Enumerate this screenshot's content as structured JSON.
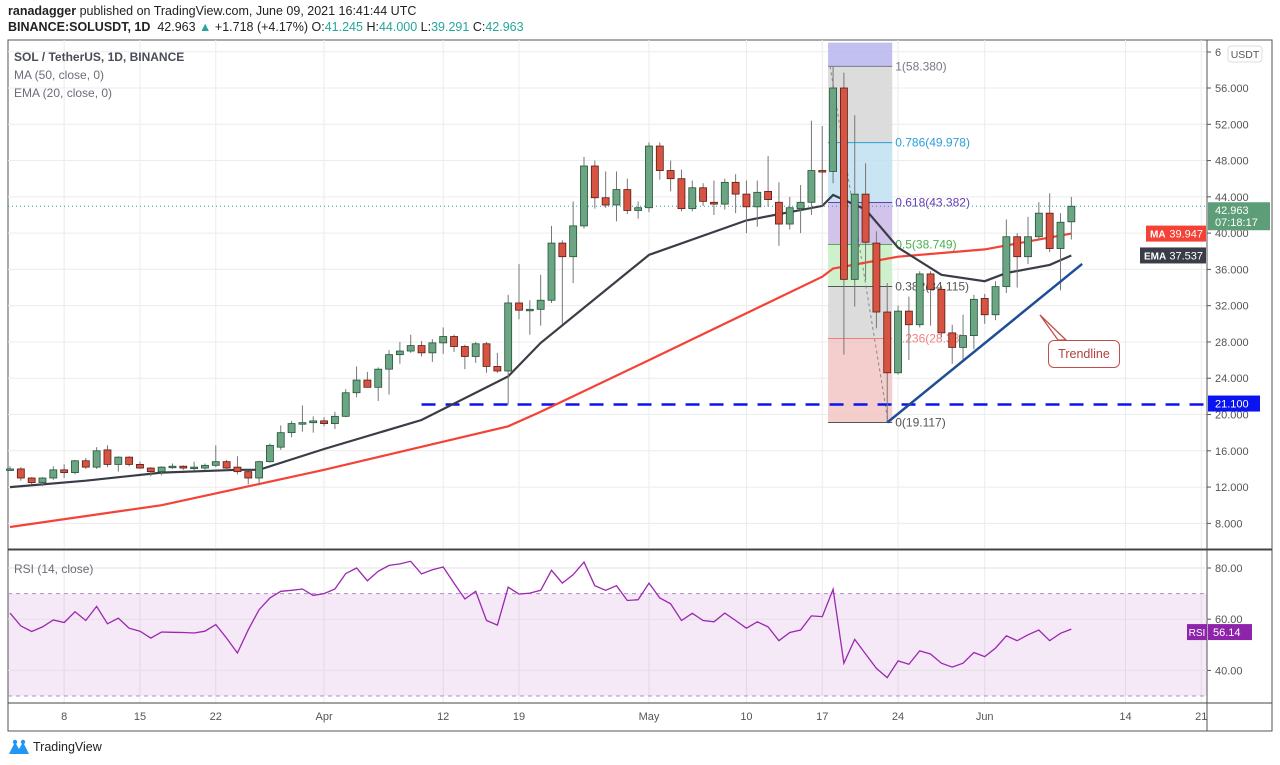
{
  "header": {
    "author": "ranadagger",
    "published_text": "published on TradingView.com, June 09, 2021 16:41:44 UTC",
    "symbol": "BINANCE:SOLUSDT, 1D",
    "last": "42.963",
    "change": "+1.718 (+4.17%)",
    "o_label": "O:",
    "o": "41.245",
    "h_label": "H:",
    "h": "44.000",
    "l_label": "L:",
    "l": "39.291",
    "c_label": "C:",
    "c": "42.963"
  },
  "legend": {
    "title": "SOL / TetherUS, 1D, BINANCE",
    "ma": "MA (50, close, 0)",
    "ema": "EMA (20, close, 0)",
    "rsi": "RSI (14, close)"
  },
  "footer": {
    "brand": "TradingView",
    "logo_icon": "tradingview-logo-icon"
  },
  "colors": {
    "up": "#6ba583",
    "up_border": "#225437",
    "down": "#d75442",
    "down_border": "#5b1a13",
    "ma": "#f44336",
    "ema": "#3a3d47",
    "rsi": "#9c27b0",
    "support": "#0a14f0",
    "trendline": "#1f4e99",
    "accent_teal": "#26a69a"
  },
  "chart_data": {
    "type": "candlestick",
    "year": 2021,
    "currency": "USDT",
    "price_ylim": [
      4,
      61
    ],
    "price_ticks": [
      "8.000",
      "12.000",
      "16.000",
      "20.000",
      "24.000",
      "28.000",
      "32.000",
      "36.000",
      "40.000",
      "44.000",
      "48.000",
      "52.000",
      "56.000",
      "6"
    ],
    "x_ticks": [
      {
        "label": "8",
        "date": "03-08"
      },
      {
        "label": "15",
        "date": "03-15"
      },
      {
        "label": "22",
        "date": "03-22"
      },
      {
        "label": "Apr",
        "date": "04-01"
      },
      {
        "label": "12",
        "date": "04-12"
      },
      {
        "label": "19",
        "date": "04-19"
      },
      {
        "label": "May",
        "date": "05-01"
      },
      {
        "label": "10",
        "date": "05-10"
      },
      {
        "label": "17",
        "date": "05-17"
      },
      {
        "label": "24",
        "date": "05-24"
      },
      {
        "label": "Jun",
        "date": "06-01"
      },
      {
        "label": "14",
        "date": "06-14"
      },
      {
        "label": "21",
        "date": "06-21"
      }
    ],
    "grid": true,
    "candles_fields": [
      "date",
      "open",
      "high",
      "low",
      "close"
    ],
    "candles": [
      [
        "03-03",
        14.0,
        14.3,
        13.8,
        14.0
      ],
      [
        "03-04",
        14.0,
        14.2,
        12.7,
        13.0
      ],
      [
        "03-05",
        13.0,
        13.1,
        12.3,
        12.5
      ],
      [
        "03-06",
        12.5,
        13.1,
        12.1,
        13.0
      ],
      [
        "03-07",
        13.0,
        14.3,
        12.8,
        13.9
      ],
      [
        "03-08",
        13.9,
        14.5,
        13.0,
        13.6
      ],
      [
        "03-09",
        13.6,
        15.0,
        13.4,
        14.9
      ],
      [
        "03-10",
        14.9,
        15.2,
        14.0,
        14.2
      ],
      [
        "03-11",
        14.2,
        16.4,
        14.0,
        16.0
      ],
      [
        "03-12",
        16.1,
        16.6,
        14.2,
        14.5
      ],
      [
        "03-13",
        14.5,
        15.4,
        13.7,
        15.3
      ],
      [
        "03-14",
        15.3,
        15.4,
        14.3,
        14.5
      ],
      [
        "03-15",
        14.5,
        14.8,
        14.0,
        14.1
      ],
      [
        "03-16",
        14.1,
        14.2,
        13.2,
        13.7
      ],
      [
        "03-17",
        13.7,
        14.3,
        13.3,
        14.2
      ],
      [
        "03-18",
        14.2,
        14.6,
        14.0,
        14.3
      ],
      [
        "03-19",
        14.3,
        14.4,
        13.9,
        14.1
      ],
      [
        "03-20",
        14.1,
        14.8,
        13.8,
        14.2
      ],
      [
        "03-21",
        14.1,
        14.6,
        13.9,
        14.4
      ],
      [
        "03-22",
        14.4,
        16.6,
        14.2,
        14.8
      ],
      [
        "03-23",
        14.8,
        15.0,
        13.9,
        14.1
      ],
      [
        "03-24",
        14.2,
        15.4,
        13.4,
        13.7
      ],
      [
        "03-25",
        13.7,
        13.8,
        12.3,
        13.0
      ],
      [
        "03-26",
        13.0,
        14.9,
        12.2,
        14.8
      ],
      [
        "03-27",
        14.8,
        16.8,
        14.7,
        16.6
      ],
      [
        "03-28",
        16.4,
        18.8,
        16.1,
        18.0
      ],
      [
        "03-29",
        18.0,
        19.3,
        17.5,
        19.0
      ],
      [
        "03-30",
        19.0,
        21.0,
        18.1,
        19.1
      ],
      [
        "03-31",
        19.1,
        19.8,
        18.0,
        19.3
      ],
      [
        "04-01",
        19.3,
        19.7,
        18.7,
        19.0
      ],
      [
        "04-02",
        19.0,
        20.3,
        18.4,
        19.8
      ],
      [
        "04-03",
        19.8,
        22.8,
        19.7,
        22.4
      ],
      [
        "04-04",
        22.4,
        25.3,
        21.9,
        23.8
      ],
      [
        "04-05",
        23.8,
        24.7,
        23.0,
        23.0
      ],
      [
        "04-06",
        23.0,
        25.2,
        21.5,
        25.0
      ],
      [
        "04-07",
        25.0,
        27.1,
        22.2,
        26.6
      ],
      [
        "04-08",
        26.6,
        28.0,
        25.6,
        27.0
      ],
      [
        "04-09",
        27.0,
        28.8,
        26.8,
        27.6
      ],
      [
        "04-10",
        27.6,
        28.1,
        26.4,
        26.8
      ],
      [
        "04-11",
        26.8,
        28.3,
        25.8,
        27.9
      ],
      [
        "04-12",
        27.9,
        29.6,
        26.7,
        28.6
      ],
      [
        "04-13",
        28.6,
        28.8,
        26.9,
        27.5
      ],
      [
        "04-14",
        27.5,
        27.7,
        25.0,
        26.4
      ],
      [
        "04-15",
        26.4,
        28.0,
        25.7,
        27.8
      ],
      [
        "04-16",
        27.8,
        28.0,
        24.6,
        25.3
      ],
      [
        "04-17",
        25.3,
        26.8,
        24.6,
        24.8
      ],
      [
        "04-18",
        24.8,
        33.2,
        21.1,
        32.3
      ],
      [
        "04-19",
        32.3,
        36.6,
        30.5,
        31.5
      ],
      [
        "04-20",
        31.6,
        32.6,
        28.8,
        31.6
      ],
      [
        "04-21",
        31.6,
        35.4,
        29.8,
        32.6
      ],
      [
        "04-22",
        32.6,
        40.8,
        32.3,
        38.9
      ],
      [
        "04-23",
        38.9,
        39.2,
        30.0,
        37.4
      ],
      [
        "04-24",
        37.4,
        43.5,
        34.5,
        40.8
      ],
      [
        "04-25",
        40.8,
        48.4,
        40.5,
        47.4
      ],
      [
        "04-26",
        47.4,
        48.0,
        42.7,
        43.9
      ],
      [
        "04-27",
        43.9,
        46.8,
        42.8,
        43.1
      ],
      [
        "04-28",
        43.1,
        46.8,
        41.3,
        44.8
      ],
      [
        "04-29",
        44.8,
        46.0,
        42.1,
        42.5
      ],
      [
        "04-30",
        42.5,
        43.5,
        41.6,
        42.8
      ],
      [
        "05-01",
        42.8,
        50.0,
        42.3,
        49.6
      ],
      [
        "05-02",
        49.6,
        50.0,
        45.9,
        46.9
      ],
      [
        "05-03",
        46.9,
        48.0,
        44.6,
        46.0
      ],
      [
        "05-04",
        46.0,
        47.0,
        42.4,
        42.7
      ],
      [
        "05-05",
        42.7,
        45.8,
        42.4,
        45.0
      ],
      [
        "05-06",
        45.0,
        45.5,
        43.0,
        43.5
      ],
      [
        "05-07",
        43.4,
        45.8,
        42.0,
        43.2
      ],
      [
        "05-08",
        43.2,
        46.0,
        42.6,
        45.6
      ],
      [
        "05-09",
        45.6,
        46.5,
        42.2,
        44.3
      ],
      [
        "05-10",
        44.3,
        45.8,
        40.0,
        42.9
      ],
      [
        "05-11",
        42.9,
        45.8,
        40.7,
        44.5
      ],
      [
        "05-12",
        44.6,
        48.5,
        42.9,
        43.7
      ],
      [
        "05-13",
        43.4,
        45.6,
        38.6,
        41.0
      ],
      [
        "05-14",
        41.0,
        44.0,
        40.4,
        42.8
      ],
      [
        "05-15",
        42.7,
        45.3,
        40.0,
        43.4
      ],
      [
        "05-16",
        43.4,
        52.4,
        42.0,
        46.9
      ],
      [
        "05-17",
        46.9,
        51.8,
        43.0,
        46.8
      ],
      [
        "05-18",
        46.8,
        58.4,
        45.5,
        56.0
      ],
      [
        "05-19",
        56.0,
        57.7,
        26.6,
        34.9
      ],
      [
        "05-20",
        34.9,
        53.0,
        31.9,
        44.3
      ],
      [
        "05-21",
        44.3,
        47.7,
        34.8,
        39.0
      ],
      [
        "05-22",
        38.9,
        40.2,
        29.5,
        31.3
      ],
      [
        "05-23",
        31.3,
        34.5,
        19.1,
        24.6
      ],
      [
        "05-24",
        24.6,
        32.0,
        24.4,
        31.4
      ],
      [
        "05-25",
        31.4,
        33.0,
        26.0,
        29.9
      ],
      [
        "05-26",
        29.9,
        35.8,
        29.6,
        35.5
      ],
      [
        "05-27",
        35.5,
        35.8,
        29.8,
        33.8
      ],
      [
        "05-28",
        33.8,
        34.2,
        28.5,
        29.0
      ],
      [
        "05-29",
        29.0,
        29.9,
        25.6,
        27.4
      ],
      [
        "05-30",
        27.4,
        31.0,
        25.9,
        28.7
      ],
      [
        "05-31",
        28.7,
        33.2,
        27.2,
        32.7
      ],
      [
        "06-01",
        32.8,
        33.3,
        30.0,
        31.0
      ],
      [
        "06-02",
        31.0,
        34.7,
        30.4,
        34.1
      ],
      [
        "06-03",
        34.1,
        41.5,
        33.4,
        39.6
      ],
      [
        "06-04",
        39.6,
        40.0,
        34.0,
        37.4
      ],
      [
        "06-05",
        37.4,
        41.8,
        36.6,
        39.6
      ],
      [
        "06-06",
        39.6,
        43.4,
        39.2,
        42.2
      ],
      [
        "06-07",
        42.2,
        44.4,
        37.9,
        38.3
      ],
      [
        "06-08",
        38.3,
        42.2,
        33.7,
        41.2
      ],
      [
        "06-09",
        41.245,
        44.0,
        39.291,
        42.963
      ]
    ],
    "ma50": [
      [
        "03-03",
        7.6
      ],
      [
        "03-17",
        10.0
      ],
      [
        "04-01",
        13.9
      ],
      [
        "04-18",
        18.7
      ],
      [
        "04-21",
        20.3
      ],
      [
        "05-01",
        26.0
      ],
      [
        "05-17",
        35.2
      ],
      [
        "05-18",
        36.1
      ],
      [
        "05-24",
        37.4
      ],
      [
        "06-01",
        38.2
      ],
      [
        "06-09",
        39.947
      ]
    ],
    "ema20": [
      [
        "03-03",
        12.0
      ],
      [
        "03-10",
        12.7
      ],
      [
        "03-17",
        13.6
      ],
      [
        "03-24",
        13.9
      ],
      [
        "03-26",
        13.9
      ],
      [
        "04-01",
        16.2
      ],
      [
        "04-10",
        19.4
      ],
      [
        "04-18",
        24.2
      ],
      [
        "04-21",
        27.9
      ],
      [
        "05-01",
        37.6
      ],
      [
        "05-10",
        41.4
      ],
      [
        "05-17",
        43.0
      ],
      [
        "05-18",
        44.2
      ],
      [
        "05-21",
        42.6
      ],
      [
        "05-24",
        38.4
      ],
      [
        "05-28",
        35.4
      ],
      [
        "06-01",
        34.7
      ],
      [
        "06-03",
        35.6
      ],
      [
        "06-07",
        36.5
      ],
      [
        "06-09",
        37.537
      ]
    ],
    "last_price": {
      "value": 42.963,
      "label": "42.963",
      "countdown": "07:18:17"
    },
    "ma_label": {
      "name": "MA",
      "value": "39.947"
    },
    "ema_label": {
      "name": "EMA",
      "value": "37.537"
    },
    "support": {
      "value": 21.1,
      "label": "21.100",
      "from": "04-10"
    },
    "trendline": {
      "from": [
        "05-23",
        19.117
      ],
      "to": [
        "06-10",
        36.6
      ],
      "annotation": "Trendline"
    },
    "fib": {
      "from": "05-18",
      "to": "05-23",
      "levels": [
        {
          "ratio": "1",
          "value": 58.38,
          "text": "1(58.380)",
          "color": "#787b86"
        },
        {
          "ratio": "0.786",
          "value": 49.978,
          "text": "0.786(49.978)",
          "color": "#2a9fd6"
        },
        {
          "ratio": "0.618",
          "value": 43.382,
          "text": "0.618(43.382)",
          "color": "#673ab7"
        },
        {
          "ratio": "0.5",
          "value": 38.749,
          "text": "0.5(38.749)",
          "color": "#4caf50"
        },
        {
          "ratio": "0.382",
          "value": 34.115,
          "text": "0.382(34.115)",
          "color": "#555"
        },
        {
          "ratio": "0.236",
          "value": 28.38,
          "text": "0.236(28.38)",
          "color": "#f08080"
        },
        {
          "ratio": "0",
          "value": 19.117,
          "text": "0(19.117)",
          "color": "#555"
        }
      ],
      "zones": [
        "#b7b4ee",
        "#d6d6d6",
        "#bfe0f2",
        "#c9b8e6",
        "#c5edc4",
        "#d6d6d6",
        "#f2c4c4"
      ]
    },
    "rsi": {
      "ylim": [
        25,
        86
      ],
      "ticks": [
        "80.00",
        "60.00",
        "40.00"
      ],
      "bands": [
        70,
        30
      ],
      "current": {
        "name": "RSI",
        "value": "56.14"
      },
      "values": [
        62.4,
        57.4,
        55.2,
        57,
        59.7,
        58.7,
        62.9,
        59.5,
        65,
        58.2,
        60.4,
        56.5,
        55.3,
        52.6,
        55,
        54.9,
        54.8,
        54.6,
        55.3,
        57.9,
        52.6,
        46.8,
        55.9,
        63.7,
        68.3,
        70.9,
        71.3,
        71.8,
        69.3,
        70,
        71.8,
        77.8,
        80,
        75,
        78.7,
        81,
        81.6,
        82.6,
        77.7,
        79.3,
        80.4,
        74.1,
        67.9,
        70.9,
        59.5,
        57.7,
        72.5,
        69.8,
        70.2,
        71.3,
        79.1,
        74.1,
        77.4,
        82.3,
        73.1,
        71.3,
        73.1,
        67.3,
        67.6,
        74.1,
        68.3,
        66,
        59.5,
        62.3,
        59.5,
        59,
        62.4,
        59.5,
        56.5,
        59,
        57,
        51.6,
        54.8,
        55.8,
        61.3,
        61,
        71.7,
        42.8,
        52.1,
        46.4,
        40.8,
        37.2,
        43.7,
        42.4,
        47.6,
        46.4,
        42.8,
        41.3,
        42.8,
        47,
        45.4,
        48.7,
        53.5,
        51.6,
        53.9,
        55.8,
        51.6,
        54.5,
        56.14
      ]
    }
  }
}
